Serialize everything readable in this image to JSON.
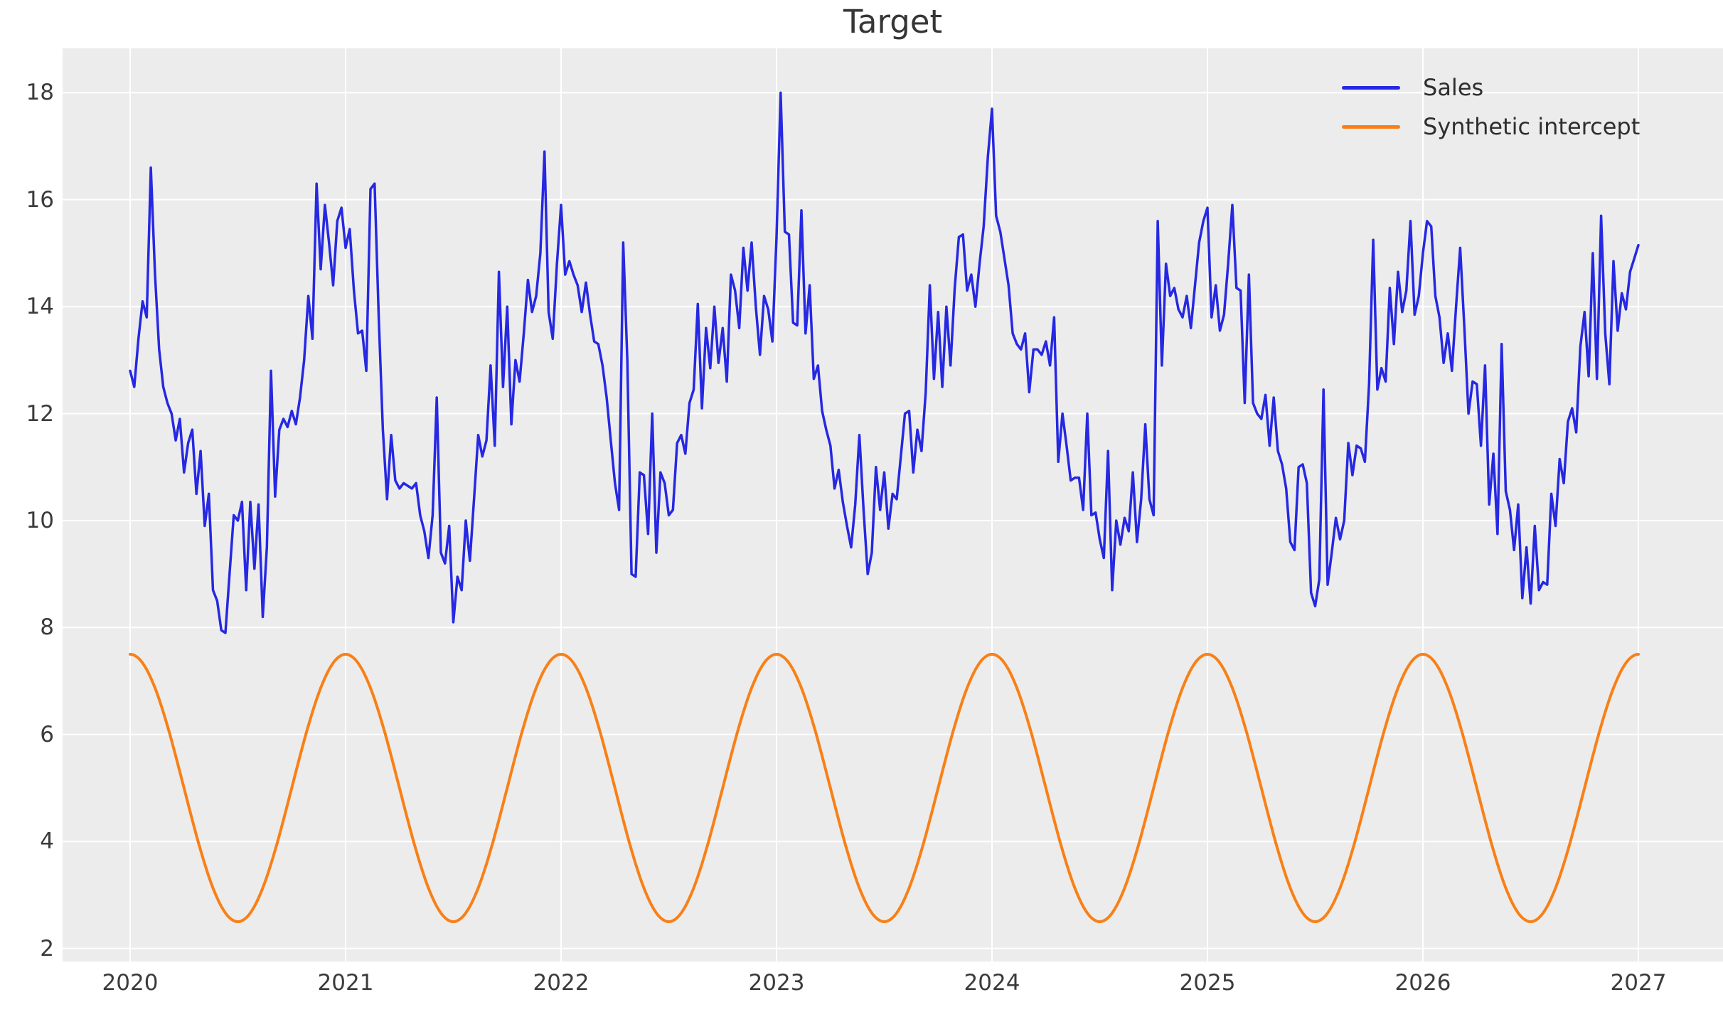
{
  "title": "Target",
  "legend": {
    "position": "upper right",
    "items": [
      {
        "label": "Sales",
        "color": "#2628e2"
      },
      {
        "label": "Synthetic intercept",
        "color": "#f88017"
      }
    ]
  },
  "axes": {
    "x_ticks": [
      "2020",
      "2021",
      "2022",
      "2023",
      "2024",
      "2025",
      "2026",
      "2027"
    ],
    "y_ticks": [
      "2",
      "4",
      "6",
      "8",
      "10",
      "12",
      "14",
      "16",
      "18"
    ]
  },
  "colors": {
    "figure_background": "#ffffff",
    "plot_background": "#ececec",
    "gridline": "#ffffff",
    "tick_label": "#3b3b3b",
    "title": "#363636",
    "sales_line": "#2628e2",
    "intercept_line": "#f88017"
  },
  "chart_data": {
    "type": "line",
    "title": "Target",
    "xlabel": "",
    "ylabel": "",
    "x_tick_values": [
      2020,
      2021,
      2022,
      2023,
      2024,
      2025,
      2026,
      2027
    ],
    "y_tick_values": [
      2,
      4,
      6,
      8,
      10,
      12,
      14,
      16,
      18
    ],
    "xlim": [
      2019.69,
      2027.39
    ],
    "ylim": [
      1.75,
      18.85
    ],
    "grid": true,
    "legend_position": "upper right",
    "series": [
      {
        "name": "Sales",
        "color": "#2628e2",
        "style": "solid",
        "cadence": "weekly (52 points per year)",
        "x_start": 2020.0,
        "x_step_years": 0.01923,
        "values": [
          12.8,
          12.5,
          13.4,
          14.1,
          13.8,
          16.6,
          14.6,
          13.2,
          12.5,
          12.2,
          12.0,
          11.5,
          11.9,
          10.9,
          11.45,
          11.7,
          10.5,
          11.3,
          9.9,
          10.5,
          8.7,
          8.5,
          7.95,
          7.9,
          9.0,
          10.1,
          10.0,
          10.35,
          8.7,
          10.35,
          9.1,
          10.3,
          8.2,
          9.5,
          12.8,
          10.45,
          11.7,
          11.9,
          11.75,
          12.05,
          11.8,
          12.3,
          13.0,
          14.2,
          13.4,
          16.3,
          14.7,
          15.9,
          15.2,
          14.4,
          15.6,
          15.85,
          15.1,
          15.45,
          14.3,
          13.5,
          13.55,
          12.8,
          16.2,
          16.3,
          13.8,
          11.7,
          10.4,
          11.6,
          10.75,
          10.6,
          10.7,
          10.65,
          10.6,
          10.7,
          10.1,
          9.8,
          9.3,
          10.1,
          12.3,
          9.4,
          9.2,
          9.9,
          8.1,
          8.95,
          8.7,
          10.0,
          9.25,
          10.4,
          11.6,
          11.2,
          11.5,
          12.9,
          11.4,
          14.65,
          12.5,
          14.0,
          11.8,
          13.0,
          12.6,
          13.5,
          14.5,
          13.9,
          14.2,
          15.0,
          16.9,
          13.9,
          13.4,
          14.8,
          15.9,
          14.6,
          14.85,
          14.6,
          14.4,
          13.9,
          14.45,
          13.85,
          13.35,
          13.3,
          12.9,
          12.3,
          11.5,
          10.7,
          10.2,
          15.2,
          13.0,
          9.0,
          8.95,
          10.9,
          10.85,
          9.75,
          12.0,
          9.4,
          10.9,
          10.7,
          10.1,
          10.2,
          11.45,
          11.6,
          11.25,
          12.2,
          12.45,
          14.05,
          12.1,
          13.6,
          12.85,
          14.0,
          12.95,
          13.6,
          12.6,
          14.6,
          14.3,
          13.6,
          15.1,
          14.3,
          15.2,
          14.0,
          13.1,
          14.2,
          13.95,
          13.35,
          15.3,
          18.0,
          15.4,
          15.35,
          13.7,
          13.65,
          15.8,
          13.5,
          14.4,
          12.65,
          12.9,
          12.05,
          11.7,
          11.4,
          10.6,
          10.95,
          10.35,
          9.9,
          9.5,
          10.3,
          11.6,
          10.2,
          9.0,
          9.4,
          11.0,
          10.2,
          10.9,
          9.85,
          10.5,
          10.4,
          11.2,
          12.0,
          12.05,
          10.9,
          11.7,
          11.3,
          12.4,
          14.4,
          12.65,
          13.9,
          12.5,
          14.0,
          12.9,
          14.35,
          15.3,
          15.35,
          14.3,
          14.6,
          14.0,
          14.8,
          15.5,
          16.8,
          17.7,
          15.7,
          15.4,
          14.9,
          14.4,
          13.5,
          13.3,
          13.2,
          13.5,
          12.4,
          13.2,
          13.2,
          13.1,
          13.35,
          12.9,
          13.8,
          11.1,
          12.0,
          11.4,
          10.75,
          10.8,
          10.8,
          10.2,
          12.0,
          10.1,
          10.15,
          9.65,
          9.3,
          11.3,
          8.7,
          10.0,
          9.55,
          10.05,
          9.8,
          10.9,
          9.6,
          10.4,
          11.8,
          10.4,
          10.1,
          15.6,
          12.9,
          14.8,
          14.2,
          14.35,
          13.95,
          13.8,
          14.2,
          13.6,
          14.4,
          15.2,
          15.6,
          15.85,
          13.8,
          14.4,
          13.55,
          13.85,
          14.8,
          15.9,
          14.35,
          14.3,
          12.2,
          14.6,
          12.2,
          12.0,
          11.9,
          12.35,
          11.4,
          12.3,
          11.3,
          11.05,
          10.6,
          9.6,
          9.45,
          11.0,
          11.05,
          10.7,
          8.65,
          8.4,
          8.9,
          12.45,
          8.8,
          9.4,
          10.05,
          9.65,
          10.0,
          11.45,
          10.85,
          11.4,
          11.35,
          11.1,
          12.55,
          15.25,
          12.45,
          12.85,
          12.6,
          14.35,
          13.3,
          14.65,
          13.9,
          14.3,
          15.6,
          13.85,
          14.2,
          15.0,
          15.6,
          15.5,
          14.2,
          13.8,
          12.95,
          13.5,
          12.8,
          14.0,
          15.1,
          13.6,
          12.0,
          12.6,
          12.55,
          11.4,
          12.9,
          10.3,
          11.25,
          9.75,
          13.3,
          10.55,
          10.2,
          9.45,
          10.3,
          8.55,
          9.5,
          8.45,
          9.9,
          8.7,
          8.85,
          8.8,
          10.5,
          9.9,
          11.15,
          10.7,
          11.85,
          12.1,
          11.65,
          13.25,
          13.9,
          12.7,
          15.0,
          12.65,
          15.7,
          13.5,
          12.55,
          14.85,
          13.55,
          14.25,
          13.95,
          14.65,
          14.9,
          15.15
        ]
      },
      {
        "name": "Synthetic intercept",
        "color": "#f88017",
        "style": "solid",
        "formula": "y = 5 + 2.5 * cos(2*pi*(t - 2020))",
        "mean": 5.0,
        "amplitude": 2.5,
        "period_years": 1.0,
        "min": 2.5,
        "max": 7.5,
        "x_start": 2020.0,
        "x_end": 2027.0,
        "peaks_at_integer_years": true
      }
    ]
  }
}
